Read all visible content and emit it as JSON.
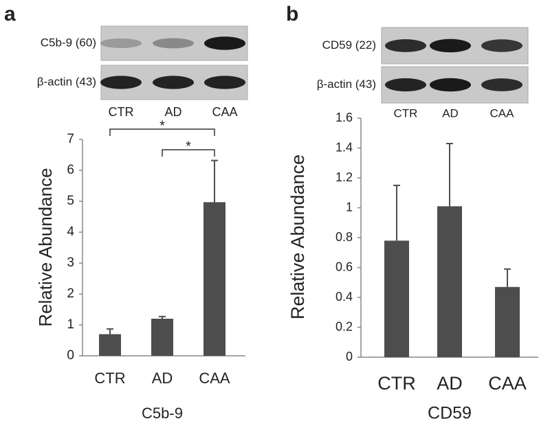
{
  "chart_data": [
    {
      "type": "bar",
      "panel": "a",
      "xlabel": "C5b-9",
      "ylabel": "Relative Abundance",
      "blots": [
        "C5b-9 (60)",
        "β-actin (43)"
      ],
      "blot_lanes": [
        "CTR",
        "AD",
        "CAA"
      ],
      "categories": [
        "CTR",
        "AD",
        "CAA"
      ],
      "values": [
        0.7,
        1.2,
        4.97
      ],
      "errors": [
        0.17,
        0.07,
        1.35
      ],
      "color": "#4d4d4d",
      "ylim": [
        0,
        7
      ],
      "yticks": [
        0,
        1,
        2,
        3,
        4,
        5,
        6,
        7
      ],
      "annotations": [
        {
          "text": "*",
          "from": "CTR",
          "to": "CAA"
        },
        {
          "text": "*",
          "from": "AD",
          "to": "CAA"
        }
      ]
    },
    {
      "type": "bar",
      "panel": "b",
      "xlabel": "CD59",
      "ylabel": "Relative Abundance",
      "blots": [
        "CD59 (22)",
        "β-actin (43)"
      ],
      "blot_lanes": [
        "CTR",
        "AD",
        "CAA"
      ],
      "categories": [
        "CTR",
        "AD",
        "CAA"
      ],
      "values": [
        0.78,
        1.01,
        0.47
      ],
      "errors": [
        0.37,
        0.42,
        0.12
      ],
      "color": "#4d4d4d",
      "ylim": [
        0,
        1.6
      ],
      "yticks": [
        0,
        0.2,
        0.4,
        0.6,
        0.8,
        1,
        1.2,
        1.4,
        1.6
      ]
    }
  ]
}
